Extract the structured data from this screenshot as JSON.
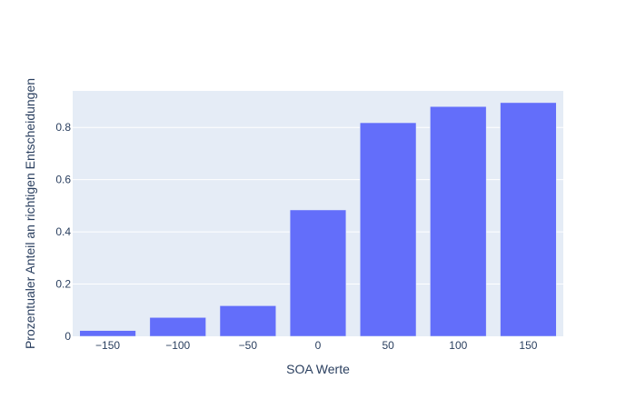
{
  "chart_data": {
    "type": "bar",
    "title": "",
    "xlabel": "SOA Werte",
    "ylabel": "Prozentualer Anteil an richtigen Entscheidungen",
    "categories": [
      "−150",
      "−100",
      "−50",
      "0",
      "50",
      "100",
      "150"
    ],
    "values": [
      0.022,
      0.072,
      0.117,
      0.484,
      0.818,
      0.88,
      0.895
    ],
    "ylim": [
      0,
      0.94
    ],
    "yticks": [
      0,
      0.2,
      0.4,
      0.6,
      0.8
    ],
    "ytick_labels": [
      "0",
      "0.2",
      "0.4",
      "0.6",
      "0.8"
    ],
    "grid": true,
    "colors": {
      "bar": "#636efa",
      "plot_bg": "#e5ecf6",
      "grid": "#ffffff",
      "text": "#2a3f5f"
    }
  }
}
